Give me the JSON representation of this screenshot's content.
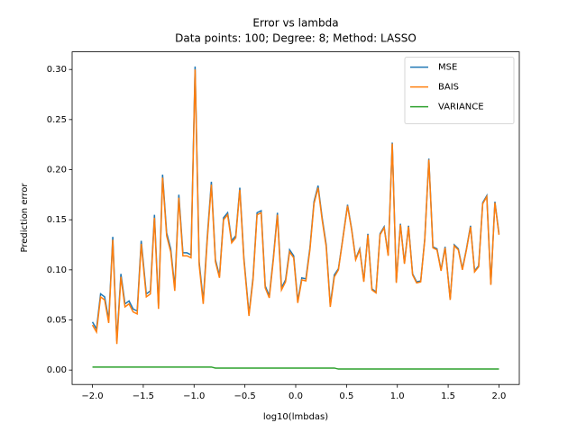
{
  "chart_data": {
    "type": "line",
    "title": "Error vs lambda",
    "subtitle": "Data points: 100; Degree: 8; Method: LASSO",
    "x_label": "log10(lmbdas)",
    "y_label": "Prediction error",
    "legend": "upper right",
    "xlim": [
      -2.2,
      2.2
    ],
    "ylim": [
      -0.0144,
      0.3176
    ],
    "xticks": [
      {
        "value": -2.0,
        "label": "−2.0"
      },
      {
        "value": -1.5,
        "label": "−1.5"
      },
      {
        "value": -1.0,
        "label": "−1.0"
      },
      {
        "value": -0.5,
        "label": "−0.5"
      },
      {
        "value": 0,
        "label": "0.0"
      },
      {
        "value": 0.5,
        "label": "0.5"
      },
      {
        "value": 1,
        "label": "1.0"
      },
      {
        "value": 1.5,
        "label": "1.5"
      },
      {
        "value": 2,
        "label": "2.0"
      }
    ],
    "yticks": [
      {
        "value": 0,
        "label": "0.00"
      },
      {
        "value": 0.05,
        "label": "0.05"
      },
      {
        "value": 0.1,
        "label": "0.10"
      },
      {
        "value": 0.15,
        "label": "0.15"
      },
      {
        "value": 0.2,
        "label": "0.20"
      },
      {
        "value": 0.25,
        "label": "0.25"
      },
      {
        "value": 0.3,
        "label": "0.30"
      }
    ],
    "x": [
      -2.0,
      -1.96,
      -1.92,
      -1.88,
      -1.84,
      -1.8,
      -1.76,
      -1.72,
      -1.68,
      -1.64,
      -1.6,
      -1.56,
      -1.52,
      -1.47,
      -1.43,
      -1.39,
      -1.35,
      -1.31,
      -1.27,
      -1.23,
      -1.19,
      -1.15,
      -1.11,
      -1.07,
      -1.03,
      -0.99,
      -0.95,
      -0.91,
      -0.87,
      -0.83,
      -0.79,
      -0.75,
      -0.71,
      -0.67,
      -0.63,
      -0.59,
      -0.55,
      -0.51,
      -0.46,
      -0.42,
      -0.38,
      -0.34,
      -0.3,
      -0.26,
      -0.22,
      -0.18,
      -0.14,
      -0.1,
      -0.06,
      -0.02,
      0.02,
      0.06,
      0.1,
      0.14,
      0.18,
      0.22,
      0.26,
      0.3,
      0.34,
      0.38,
      0.42,
      0.46,
      0.51,
      0.55,
      0.59,
      0.63,
      0.67,
      0.71,
      0.75,
      0.79,
      0.83,
      0.87,
      0.91,
      0.95,
      0.99,
      1.03,
      1.07,
      1.11,
      1.15,
      1.19,
      1.23,
      1.27,
      1.31,
      1.35,
      1.39,
      1.43,
      1.47,
      1.52,
      1.56,
      1.6,
      1.64,
      1.68,
      1.72,
      1.76,
      1.8,
      1.84,
      1.88,
      1.92,
      1.96,
      2.0
    ],
    "series": [
      {
        "name": "MSE",
        "color": "#1f77b4",
        "values": [
          0.048,
          0.041,
          0.076,
          0.073,
          0.05,
          0.133,
          0.029,
          0.096,
          0.066,
          0.069,
          0.061,
          0.059,
          0.129,
          0.076,
          0.079,
          0.155,
          0.064,
          0.195,
          0.137,
          0.121,
          0.082,
          0.175,
          0.117,
          0.117,
          0.115,
          0.303,
          0.108,
          0.069,
          0.133,
          0.188,
          0.11,
          0.094,
          0.152,
          0.157,
          0.129,
          0.134,
          0.182,
          0.112,
          0.056,
          0.092,
          0.157,
          0.159,
          0.084,
          0.074,
          0.112,
          0.157,
          0.082,
          0.09,
          0.12,
          0.114,
          0.069,
          0.092,
          0.091,
          0.122,
          0.168,
          0.184,
          0.152,
          0.125,
          0.065,
          0.095,
          0.101,
          0.129,
          0.165,
          0.141,
          0.111,
          0.121,
          0.089,
          0.136,
          0.081,
          0.078,
          0.136,
          0.143,
          0.115,
          0.227,
          0.088,
          0.146,
          0.107,
          0.144,
          0.096,
          0.088,
          0.089,
          0.131,
          0.211,
          0.123,
          0.121,
          0.1,
          0.123,
          0.071,
          0.125,
          0.121,
          0.101,
          0.121,
          0.144,
          0.099,
          0.104,
          0.167,
          0.174,
          0.086,
          0.168,
          0.136
        ]
      },
      {
        "name": "BAIS",
        "color": "#ff7f0e",
        "values": [
          0.045,
          0.038,
          0.073,
          0.07,
          0.047,
          0.13,
          0.026,
          0.093,
          0.063,
          0.066,
          0.058,
          0.056,
          0.126,
          0.073,
          0.076,
          0.152,
          0.061,
          0.192,
          0.134,
          0.118,
          0.079,
          0.172,
          0.114,
          0.114,
          0.112,
          0.3,
          0.105,
          0.066,
          0.13,
          0.185,
          0.108,
          0.092,
          0.15,
          0.155,
          0.127,
          0.132,
          0.18,
          0.11,
          0.054,
          0.09,
          0.155,
          0.157,
          0.082,
          0.072,
          0.11,
          0.155,
          0.08,
          0.088,
          0.118,
          0.112,
          0.067,
          0.09,
          0.089,
          0.12,
          0.166,
          0.182,
          0.15,
          0.123,
          0.063,
          0.093,
          0.1,
          0.128,
          0.164,
          0.14,
          0.11,
          0.12,
          0.088,
          0.135,
          0.08,
          0.077,
          0.135,
          0.142,
          0.114,
          0.226,
          0.087,
          0.145,
          0.106,
          0.143,
          0.095,
          0.087,
          0.088,
          0.13,
          0.21,
          0.122,
          0.12,
          0.099,
          0.122,
          0.07,
          0.124,
          0.12,
          0.1,
          0.12,
          0.143,
          0.098,
          0.103,
          0.166,
          0.173,
          0.085,
          0.167,
          0.135
        ]
      },
      {
        "name": "VARIANCE",
        "color": "#2ca02c",
        "values": [
          0.003,
          0.003,
          0.003,
          0.003,
          0.003,
          0.003,
          0.003,
          0.003,
          0.003,
          0.003,
          0.003,
          0.003,
          0.003,
          0.003,
          0.003,
          0.003,
          0.003,
          0.003,
          0.003,
          0.003,
          0.003,
          0.003,
          0.003,
          0.003,
          0.003,
          0.003,
          0.003,
          0.003,
          0.003,
          0.003,
          0.002,
          0.002,
          0.002,
          0.002,
          0.002,
          0.002,
          0.002,
          0.002,
          0.002,
          0.002,
          0.002,
          0.002,
          0.002,
          0.002,
          0.002,
          0.002,
          0.002,
          0.002,
          0.002,
          0.002,
          0.002,
          0.002,
          0.002,
          0.002,
          0.002,
          0.002,
          0.002,
          0.002,
          0.002,
          0.002,
          0.001,
          0.001,
          0.001,
          0.001,
          0.001,
          0.001,
          0.001,
          0.001,
          0.001,
          0.001,
          0.001,
          0.001,
          0.001,
          0.001,
          0.001,
          0.001,
          0.001,
          0.001,
          0.001,
          0.001,
          0.001,
          0.001,
          0.001,
          0.001,
          0.001,
          0.001,
          0.001,
          0.001,
          0.001,
          0.001,
          0.001,
          0.001,
          0.001,
          0.001,
          0.001,
          0.001,
          0.001,
          0.001,
          0.001,
          0.001
        ]
      }
    ]
  }
}
